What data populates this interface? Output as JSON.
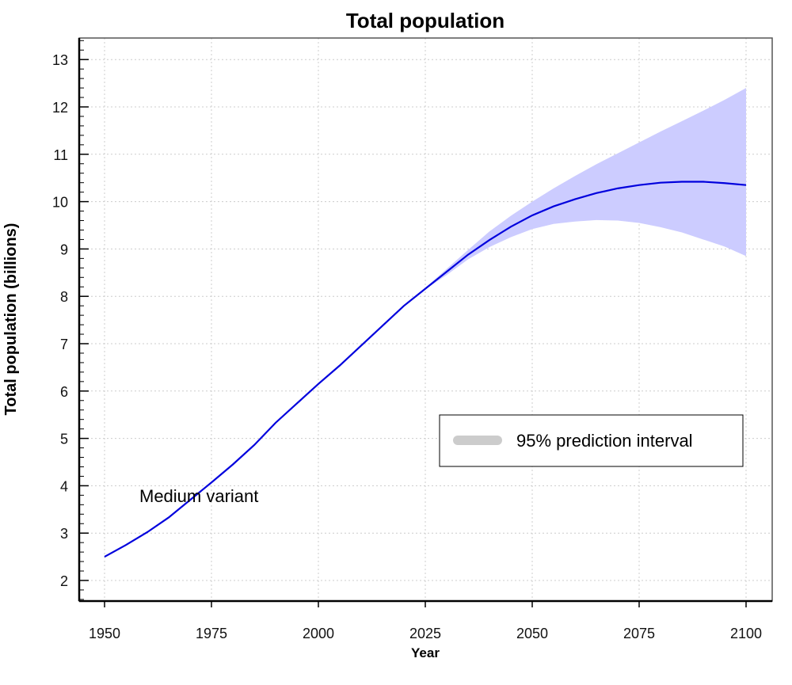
{
  "chart_data": {
    "type": "line",
    "title": "Total population",
    "xlabel": "Year",
    "ylabel": "Total population (billions)",
    "xlim": [
      1945,
      2108
    ],
    "ylim": [
      1.55,
      13.5
    ],
    "x_ticks": [
      1950,
      1975,
      2000,
      2025,
      2050,
      2075,
      2100
    ],
    "y_ticks": [
      2,
      3,
      4,
      5,
      6,
      7,
      8,
      9,
      10,
      11,
      12,
      13
    ],
    "grid": true,
    "annotation": "Medium variant",
    "legend": {
      "position": "right",
      "entries": [
        "95% prediction interval"
      ]
    },
    "colors": {
      "line": "#0000dd",
      "band": "#ccccff",
      "legend_swatch": "#cccccc"
    },
    "series": [
      {
        "x": [
          1950,
          1955,
          1960,
          1965,
          1970,
          1975,
          1980,
          1985,
          1990,
          1995,
          2000,
          2005,
          2010,
          2015,
          2020,
          2025,
          2030,
          2035,
          2040,
          2045,
          2050,
          2055,
          2060,
          2065,
          2070,
          2075,
          2080,
          2085,
          2090,
          2095,
          2100
        ],
        "y": [
          2.5,
          2.75,
          3.02,
          3.33,
          3.7,
          4.07,
          4.45,
          4.86,
          5.33,
          5.74,
          6.15,
          6.54,
          6.96,
          7.38,
          7.8,
          8.16,
          8.52,
          8.88,
          9.19,
          9.47,
          9.71,
          9.9,
          10.05,
          10.18,
          10.28,
          10.35,
          10.4,
          10.42,
          10.42,
          10.39,
          10.35
        ]
      }
    ],
    "band": {
      "name": "95% prediction interval",
      "x": [
        2025,
        2030,
        2035,
        2040,
        2045,
        2050,
        2055,
        2060,
        2065,
        2070,
        2075,
        2080,
        2085,
        2090,
        2095,
        2100
      ],
      "lower": [
        8.15,
        8.45,
        8.78,
        9.04,
        9.25,
        9.42,
        9.53,
        9.58,
        9.61,
        9.6,
        9.55,
        9.46,
        9.35,
        9.2,
        9.05,
        8.85
      ],
      "upper": [
        8.18,
        8.58,
        8.98,
        9.37,
        9.7,
        10.0,
        10.28,
        10.54,
        10.79,
        11.02,
        11.25,
        11.48,
        11.7,
        11.92,
        12.15,
        12.4
      ]
    }
  }
}
